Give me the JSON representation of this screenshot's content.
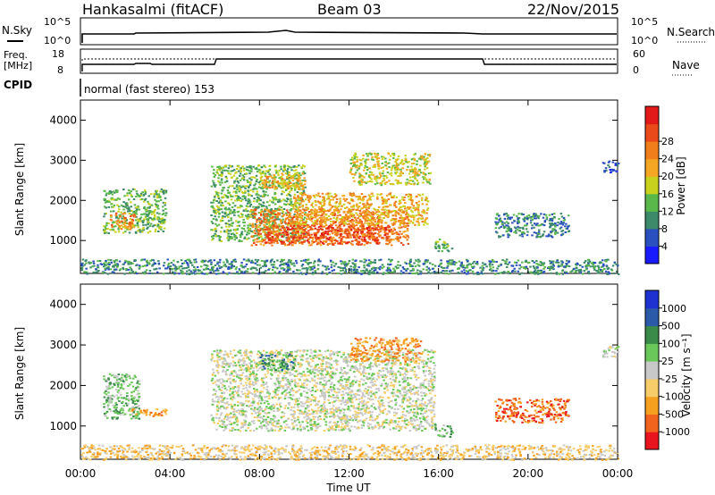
{
  "header": {
    "station": "Hankasalmi (fitACF)",
    "beam": "Beam 03",
    "date": "22/Nov/2015"
  },
  "status": {
    "nsky_label": "N.Sky",
    "nsearch_label": "N.Search",
    "freq_label": "Freq.",
    "freq_unit": "[MHz]",
    "nave_label": "Nave",
    "cpid_label": "CPID",
    "cpid_text": "normal (fast stereo) 153",
    "noise_ticks_left": [
      "10^5",
      "10^0"
    ],
    "noise_ticks_right": [
      "10^5",
      "10^0"
    ],
    "freq_ticks": [
      "18",
      "8"
    ],
    "nave_ticks": [
      "60",
      "0"
    ]
  },
  "colors": {
    "power": [
      "#1a1aff",
      "#2a4fbf",
      "#3c8a6a",
      "#5ab84a",
      "#c8d21e",
      "#f5a623",
      "#f07e1a",
      "#ea4a1a",
      "#e31a1a"
    ],
    "velocity": [
      "#e8141e",
      "#f0641e",
      "#f5a01e",
      "#f7cd6a",
      "#c8c8c8",
      "#6ac85a",
      "#3a8a4a",
      "#2a5aa8",
      "#1e32d2"
    ]
  },
  "chart_data": [
    {
      "type": "heatmap",
      "title": "",
      "ylabel": "Slant Range [km]",
      "xlabel": "",
      "x_ticks": [
        "00:00",
        "04:00",
        "08:00",
        "12:00",
        "16:00",
        "20:00",
        "00:00"
      ],
      "y_ticks": [
        "1000",
        "2000",
        "3000",
        "4000"
      ],
      "xlim_hours": [
        0,
        24
      ],
      "ylim_km": [
        180,
        4500
      ],
      "colorbar_label": "Power [dB]",
      "colorbar_ticks": [
        "4",
        "8",
        "12",
        "16",
        "20",
        "24",
        "28"
      ],
      "regions": [
        {
          "t0": 1.0,
          "t1": 3.8,
          "r0": 1200,
          "r1": 2300,
          "level": 3
        },
        {
          "t0": 1.3,
          "t1": 2.4,
          "r0": 1300,
          "r1": 1700,
          "level": 6
        },
        {
          "t0": 5.8,
          "t1": 10.0,
          "r0": 1000,
          "r1": 2900,
          "level": 3
        },
        {
          "t0": 7.6,
          "t1": 14.6,
          "r0": 900,
          "r1": 1800,
          "level": 6
        },
        {
          "t0": 8.2,
          "t1": 13.8,
          "r0": 950,
          "r1": 1400,
          "level": 7
        },
        {
          "t0": 9.5,
          "t1": 15.5,
          "r0": 1400,
          "r1": 2200,
          "level": 5
        },
        {
          "t0": 8.0,
          "t1": 10.0,
          "r0": 2300,
          "r1": 2700,
          "level": 5
        },
        {
          "t0": 12.0,
          "t1": 15.6,
          "r0": 2400,
          "r1": 3200,
          "level": 4
        },
        {
          "t0": 15.8,
          "t1": 16.6,
          "r0": 750,
          "r1": 1050,
          "level": 3
        },
        {
          "t0": 18.5,
          "t1": 21.8,
          "r0": 1100,
          "r1": 1700,
          "level": 2
        },
        {
          "t0": 23.3,
          "t1": 24.0,
          "r0": 2700,
          "r1": 3000,
          "level": 1
        },
        {
          "t0": 0.0,
          "t1": 24.0,
          "r0": 180,
          "r1": 550,
          "level": 2
        }
      ]
    },
    {
      "type": "heatmap",
      "title": "",
      "ylabel": "Slant Range [km]",
      "xlabel": "Time UT",
      "x_ticks": [
        "00:00",
        "04:00",
        "08:00",
        "12:00",
        "16:00",
        "20:00",
        "00:00"
      ],
      "y_ticks": [
        "1000",
        "2000",
        "3000",
        "4000"
      ],
      "xlim_hours": [
        0,
        24
      ],
      "ylim_km": [
        180,
        4500
      ],
      "colorbar_label": "Velocity [m s⁻¹]",
      "colorbar_ticks": [
        "1000",
        "500",
        "100",
        "25",
        "-25",
        "-100",
        "-500",
        "-1000"
      ],
      "regions": [
        {
          "t0": 1.0,
          "t1": 2.6,
          "r0": 1200,
          "r1": 2300,
          "level": 5
        },
        {
          "t0": 2.2,
          "t1": 3.8,
          "r0": 1250,
          "r1": 1450,
          "level": 2
        },
        {
          "t0": 5.8,
          "t1": 15.8,
          "r0": 900,
          "r1": 2900,
          "level": 4
        },
        {
          "t0": 8.0,
          "t1": 9.6,
          "r0": 2400,
          "r1": 2800,
          "level": 6
        },
        {
          "t0": 12.0,
          "t1": 15.2,
          "r0": 2600,
          "r1": 3200,
          "level": 2
        },
        {
          "t0": 15.8,
          "t1": 16.6,
          "r0": 750,
          "r1": 1050,
          "level": 5
        },
        {
          "t0": 18.5,
          "t1": 21.8,
          "r0": 1100,
          "r1": 1700,
          "level": 1
        },
        {
          "t0": 23.3,
          "t1": 24.0,
          "r0": 2700,
          "r1": 3000,
          "level": 4
        },
        {
          "t0": 0.0,
          "t1": 24.0,
          "r0": 180,
          "r1": 550,
          "level": 3
        }
      ]
    }
  ]
}
